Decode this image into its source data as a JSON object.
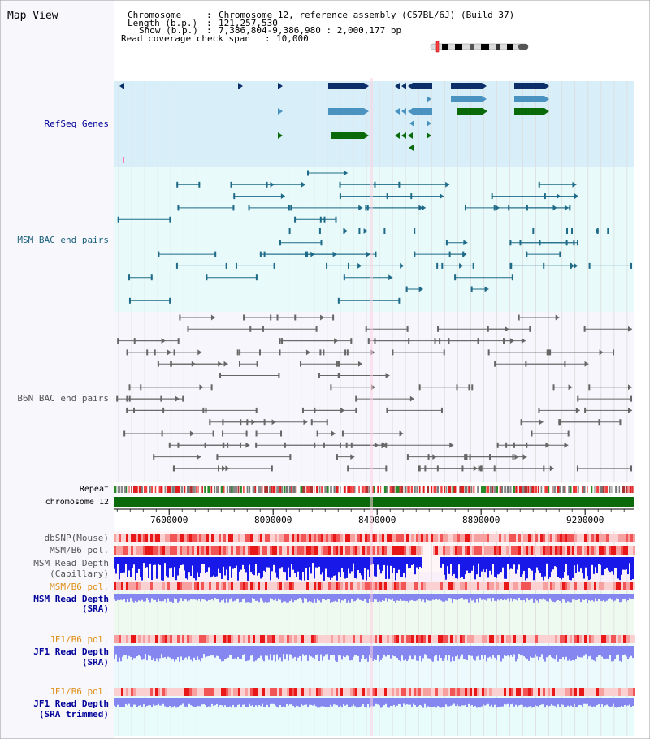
{
  "page_title": "Map View",
  "info": {
    "chromosome_label": "Chromosome",
    "chromosome_value": "Chromosome 12, reference assembly (C57BL/6J) (Build 37)",
    "length_label": "Length (b.p.)",
    "length_value": "121,257,530",
    "show_label": "Show (b.p.)",
    "show_value": "7,386,804-9,386,980 : 2,000,177 bp",
    "coverage_label": "Read coverage check span",
    "coverage_value": "10,000",
    "separator": ":"
  },
  "tracks": {
    "refseq": "RefSeq Genes",
    "msm_bac": "MSM BAC end pairs",
    "b6n_bac": "B6N BAC end pairs",
    "repeat": "Repeat",
    "chromosome": "chromosome 12",
    "dbsnp": "dbSNP(Mouse)",
    "msm_b6_pol": "MSM/B6 pol.",
    "msm_depth_cap_1": "MSM Read Depth",
    "msm_depth_cap_2": "(Capillary)",
    "msm_b6_pol_sra": "MSM/B6 pol.",
    "msm_depth_sra_1": "MSM Read Depth",
    "msm_depth_sra_2": "(SRA)",
    "jf1_b6_pol": "JF1/B6 pol.",
    "jf1_depth_1": "JF1 Read Depth",
    "jf1_depth_2": "(SRA)",
    "jf1_b6_pol_2": "JF1/B6 pol.",
    "jf1_depth_trim_1": "JF1 Read Depth",
    "jf1_depth_trim_2": "(SRA trimmed)"
  },
  "axis": {
    "ticks": [
      "7600000",
      "8000000",
      "8400000",
      "8800000",
      "9200000"
    ],
    "tick_values": [
      7600000,
      8000000,
      8400000,
      8800000,
      9200000
    ]
  },
  "colors": {
    "refseq_bg": "#d8effa",
    "msm_bg": "#e8fbfa",
    "b6n_bg": "#f6f6fc",
    "refseq_dark": "#0d2f69",
    "refseq_mid": "#4a93c0",
    "refseq_green": "#0a6a0a",
    "msm_line": "#1e6a88",
    "b6n_line": "#666666",
    "chromosome_bar": "#0a6a0a",
    "msm_depth_cap": "#1818e8",
    "depth_sra": "#8686f0",
    "pol_red": "#ee3030",
    "label_blue": "#000099",
    "label_teal": "#1a5f7a",
    "label_orange": "#e0901a"
  }
}
